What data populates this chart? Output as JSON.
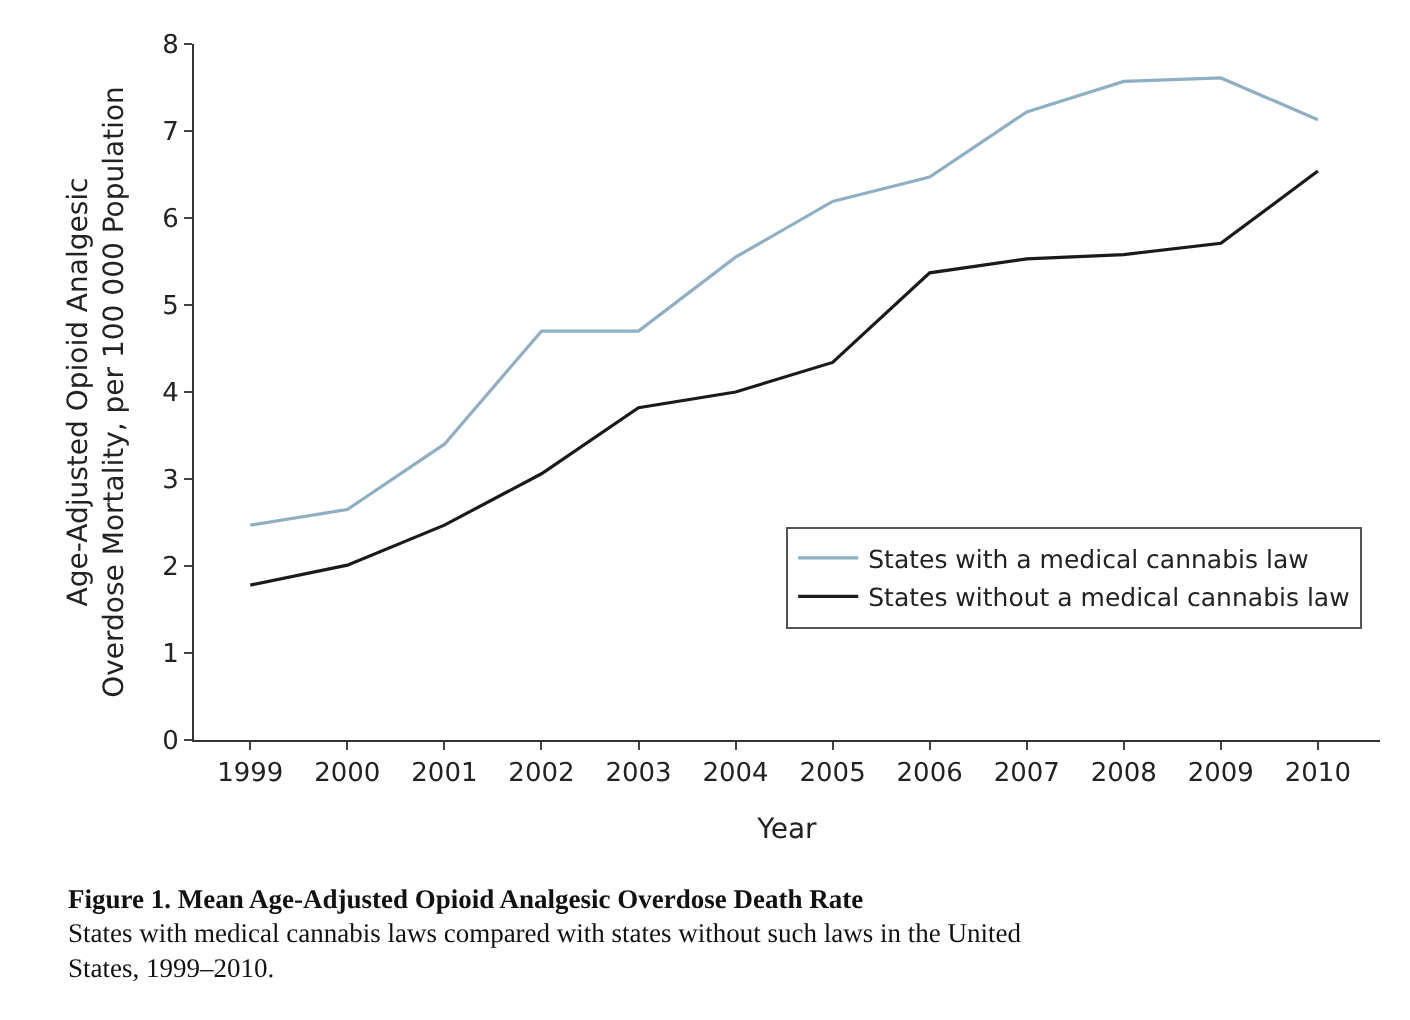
{
  "chart_data": {
    "type": "line",
    "xlabel": "Year",
    "ylabel": "Age-Adjusted Opioid Analgesic\nOverdose Mortality, per 100 000 Population",
    "x": [
      1999,
      2000,
      2001,
      2002,
      2003,
      2004,
      2005,
      2006,
      2007,
      2008,
      2009,
      2010
    ],
    "series": [
      {
        "name": "States with a medical cannabis law",
        "color": "#8fafc2",
        "values": [
          2.47,
          2.65,
          3.4,
          4.7,
          4.7,
          5.55,
          6.19,
          6.47,
          7.22,
          7.57,
          7.61,
          7.13
        ]
      },
      {
        "name": "States without a medical cannabis law",
        "color": "#1a1a1a",
        "values": [
          1.78,
          2.01,
          2.47,
          3.06,
          3.82,
          4.0,
          4.34,
          5.37,
          5.53,
          5.58,
          5.71,
          6.54
        ]
      }
    ],
    "xlim": [
      1998.42,
      2010.64
    ],
    "xticks": [
      1999,
      2000,
      2001,
      2002,
      2003,
      2004,
      2005,
      2006,
      2007,
      2008,
      2009,
      2010
    ],
    "ylim": [
      0,
      8
    ],
    "yticks": [
      0,
      1,
      2,
      3,
      4,
      5,
      6,
      7,
      8
    ],
    "legend": "bottom right",
    "marker": "none",
    "line_style": "solid",
    "annotations": [
      "Figure 1. Mean Age-Adjusted Opioid Analgesic Overdose Death Rate",
      "States with medical cannabis laws compared with states without such laws in the United\nStates, 1999–2010."
    ]
  }
}
